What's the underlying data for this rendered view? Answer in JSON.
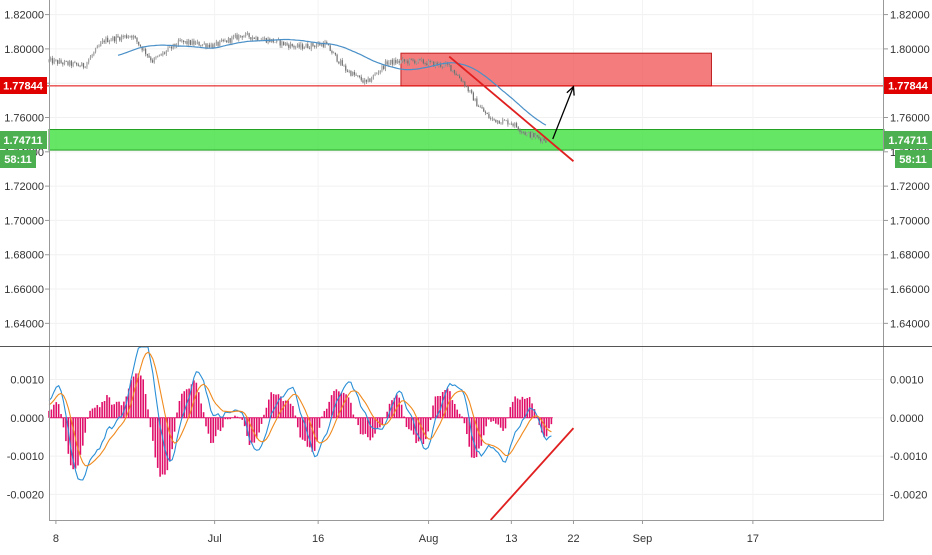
{
  "colors": {
    "candle": "#8a8a8a",
    "ma_line": "#4a90c8",
    "resistance_zone": "#f05050",
    "support_zone": "#3fe03f",
    "trendline": "#e02020",
    "arrow": "#000000",
    "histogram": "#e0106a",
    "macd_line": "#2a8fd6",
    "signal_line": "#f08a1e",
    "price_badge_red": "#e00000",
    "price_badge_green": "#4caf50",
    "axis_text": "#333333"
  },
  "labels": {
    "price_current": "1.77844",
    "price_support": "1.74711",
    "countdown": "58:11"
  },
  "chart_data": [
    {
      "type": "candlestick",
      "title": "",
      "ylim": [
        1.6268,
        1.8285
      ],
      "y_ticks": [
        "1.82000",
        "1.80000",
        "1.78000",
        "1.76000",
        "1.74000",
        "1.72000",
        "1.70000",
        "1.68000",
        "1.66000",
        "1.64000"
      ],
      "y_tick_values": [
        1.82,
        1.8,
        1.78,
        1.76,
        1.74,
        1.72,
        1.7,
        1.68,
        1.66,
        1.64
      ],
      "x_ticks": [
        "8",
        "Jul",
        "16",
        "Aug",
        "13",
        "22",
        "Sep",
        "17"
      ],
      "x_tick_dates": [
        "2018-06-08",
        "2018-07-01",
        "2018-07-16",
        "2018-08-01",
        "2018-08-13",
        "2018-08-22",
        "2018-09-01",
        "2018-09-17"
      ],
      "xlim": [
        "2018-06-07",
        "2018-10-06"
      ],
      "price_path": [
        [
          "2018-06-07",
          1.793
        ],
        [
          "2018-06-12",
          1.79
        ],
        [
          "2018-06-15",
          1.805
        ],
        [
          "2018-06-19",
          1.808
        ],
        [
          "2018-06-22",
          1.793
        ],
        [
          "2018-06-26",
          1.804
        ],
        [
          "2018-07-01",
          1.802
        ],
        [
          "2018-07-05",
          1.808
        ],
        [
          "2018-07-09",
          1.805
        ],
        [
          "2018-07-13",
          1.801
        ],
        [
          "2018-07-17",
          1.803
        ],
        [
          "2018-07-20",
          1.788
        ],
        [
          "2018-07-23",
          1.78
        ],
        [
          "2018-07-26",
          1.792
        ],
        [
          "2018-07-30",
          1.793
        ],
        [
          "2018-08-02",
          1.791
        ],
        [
          "2018-08-04",
          1.79
        ],
        [
          "2018-08-06",
          1.781
        ],
        [
          "2018-08-08",
          1.768
        ],
        [
          "2018-08-10",
          1.759
        ],
        [
          "2018-08-13",
          1.757
        ],
        [
          "2018-08-15",
          1.751
        ],
        [
          "2018-08-17",
          1.748
        ],
        [
          "2018-08-18",
          1.747
        ]
      ],
      "zones": [
        {
          "kind": "resistance",
          "x0": "2018-07-28",
          "x1": "2018-09-11",
          "y0": 1.7784,
          "y1": 1.7975
        },
        {
          "kind": "support",
          "x0": "2018-06-07",
          "x1": "2018-10-06",
          "y0": 1.741,
          "y1": 1.753
        }
      ],
      "hlines": [
        {
          "y": 1.77844
        }
      ],
      "trendlines": [
        {
          "from": [
            "2018-08-04",
            1.7955
          ],
          "to": [
            "2018-08-22",
            1.7345
          ]
        }
      ],
      "arrows": [
        {
          "from": [
            "2018-08-19",
            1.7475
          ],
          "to": [
            "2018-08-22",
            1.778
          ]
        }
      ]
    },
    {
      "type": "macd",
      "ylim": [
        -0.00267,
        0.00185
      ],
      "y_ticks": [
        "0.0010",
        "0.0000",
        "-0.0010",
        "-0.0020"
      ],
      "y_tick_values": [
        0.001,
        0.0,
        -0.001,
        -0.002
      ],
      "trendlines": [
        {
          "from": [
            "2018-08-10",
            -0.00267
          ],
          "to": [
            "2018-08-22",
            -0.00027
          ]
        }
      ],
      "histogram_end": "2018-08-19"
    }
  ]
}
